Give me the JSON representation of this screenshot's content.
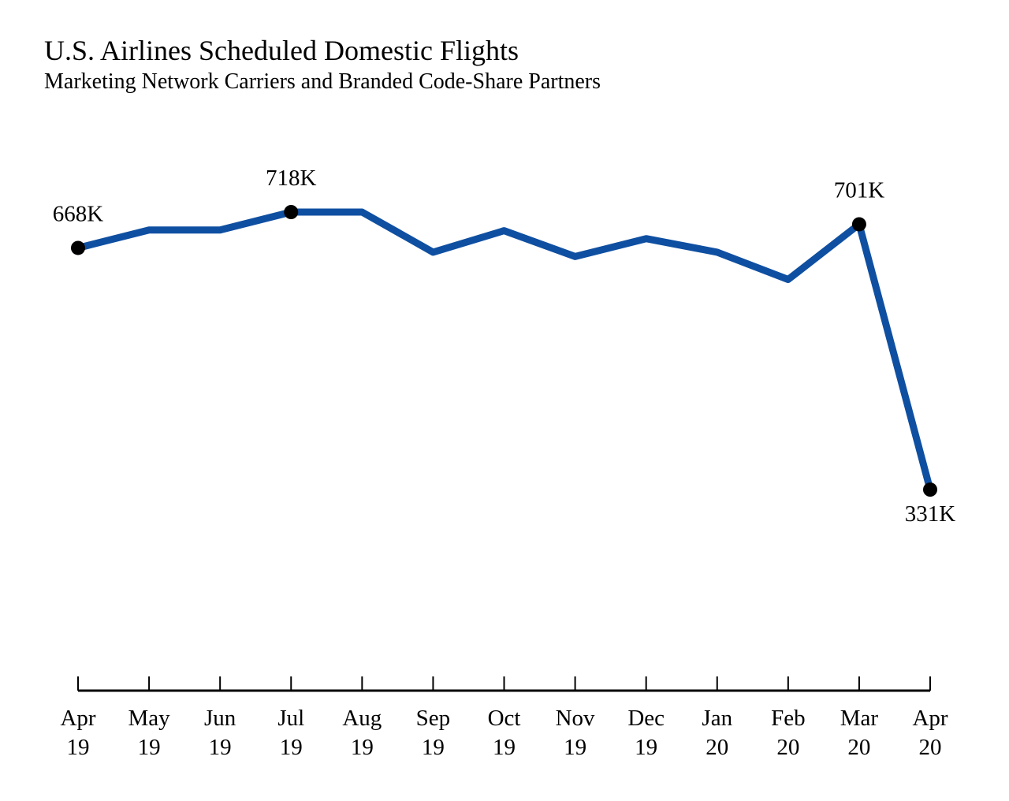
{
  "chart_data": {
    "type": "line",
    "title": "U.S. Airlines Scheduled Domestic Flights",
    "subtitle": "Marketing Network Carriers and Branded Code-Share Partners",
    "xlabel": "",
    "ylabel": "",
    "grid": false,
    "legend": "none",
    "ylim": [
      200,
      760
    ],
    "categories": [
      {
        "month": "Apr",
        "year": "19"
      },
      {
        "month": "May",
        "year": "19"
      },
      {
        "month": "Jun",
        "year": "19"
      },
      {
        "month": "Jul",
        "year": "19"
      },
      {
        "month": "Aug",
        "year": "19"
      },
      {
        "month": "Sep",
        "year": "19"
      },
      {
        "month": "Oct",
        "year": "19"
      },
      {
        "month": "Nov",
        "year": "19"
      },
      {
        "month": "Dec",
        "year": "19"
      },
      {
        "month": "Jan",
        "year": "20"
      },
      {
        "month": "Feb",
        "year": "20"
      },
      {
        "month": "Mar",
        "year": "20"
      },
      {
        "month": "Apr",
        "year": "20"
      }
    ],
    "series": [
      {
        "values": [
          668,
          693,
          693,
          718,
          718,
          662,
          692,
          656,
          681,
          662,
          624,
          701,
          331
        ],
        "color": "#0f4fa1"
      }
    ],
    "annotations": [
      {
        "index": 0,
        "label": "668K",
        "position": "above"
      },
      {
        "index": 3,
        "label": "718K",
        "position": "above"
      },
      {
        "index": 11,
        "label": "701K",
        "position": "above"
      },
      {
        "index": 12,
        "label": "331K",
        "position": "below"
      }
    ]
  }
}
